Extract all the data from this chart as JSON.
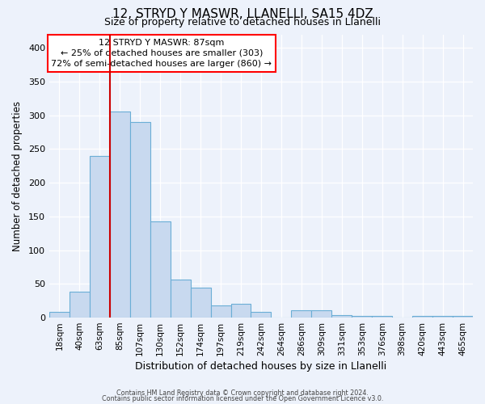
{
  "title": "12, STRYD Y MASWR, LLANELLI, SA15 4DZ",
  "subtitle": "Size of property relative to detached houses in Llanelli",
  "xlabel": "Distribution of detached houses by size in Llanelli",
  "ylabel": "Number of detached properties",
  "bar_color": "#c8d9ef",
  "bar_edge_color": "#6baed6",
  "bin_labels": [
    "18sqm",
    "40sqm",
    "63sqm",
    "85sqm",
    "107sqm",
    "130sqm",
    "152sqm",
    "174sqm",
    "197sqm",
    "219sqm",
    "242sqm",
    "264sqm",
    "286sqm",
    "309sqm",
    "331sqm",
    "353sqm",
    "376sqm",
    "398sqm",
    "420sqm",
    "443sqm",
    "465sqm"
  ],
  "bar_values": [
    8,
    38,
    240,
    305,
    290,
    143,
    56,
    45,
    18,
    20,
    9,
    0,
    11,
    11,
    4,
    3,
    3,
    0,
    3,
    2,
    3
  ],
  "vline_index": 3,
  "vline_color": "#cc0000",
  "ylim": [
    0,
    420
  ],
  "yticks": [
    0,
    50,
    100,
    150,
    200,
    250,
    300,
    350,
    400
  ],
  "annotation_title": "12 STRYD Y MASWR: 87sqm",
  "annotation_line1": "← 25% of detached houses are smaller (303)",
  "annotation_line2": "72% of semi-detached houses are larger (860) →",
  "footer1": "Contains HM Land Registry data © Crown copyright and database right 2024.",
  "footer2": "Contains public sector information licensed under the Open Government Licence v3.0.",
  "bg_color": "#edf2fb"
}
